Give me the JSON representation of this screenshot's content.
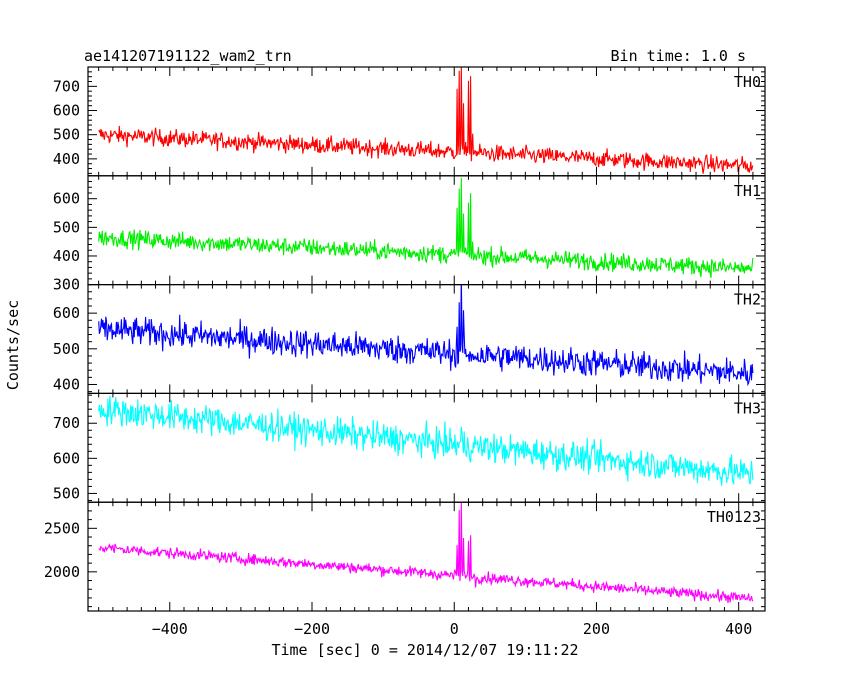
{
  "chart_data": {
    "type": "line",
    "title": "ae141207191122_wam2_trn",
    "subtitle": "Bin time: 1.0 s",
    "xlabel": "Time [sec] 0 = 2014/12/07 19:11:22",
    "ylabel": "Counts/sec",
    "xlim": [
      -515,
      437
    ],
    "x_ticks": [
      -400,
      -200,
      0,
      200,
      400
    ],
    "x_tick_labels": [
      "−400",
      "−200",
      "0",
      "200",
      "400"
    ],
    "x_start": -500,
    "x_end": 420,
    "burst_time": 5,
    "panels": [
      {
        "name": "TH0",
        "color": "#ff0000",
        "ylim": [
          330,
          780
        ],
        "y_ticks": [
          400,
          500,
          600,
          700
        ],
        "y_tick_labels": [
          "400",
          "500",
          "600",
          "700"
        ],
        "baseline_start": 500,
        "baseline_end": 370,
        "noise": 25,
        "burst_peaks": [
          [
            -1,
            690
          ],
          [
            2,
            760
          ],
          [
            5,
            790
          ],
          [
            8,
            640
          ],
          [
            11,
            470
          ],
          [
            15,
            700
          ],
          [
            18,
            720
          ],
          [
            21,
            500
          ],
          [
            25,
            440
          ]
        ]
      },
      {
        "name": "TH1",
        "color": "#00ee00",
        "ylim": [
          300,
          680
        ],
        "y_ticks": [
          300,
          400,
          500,
          600
        ],
        "y_tick_labels": [
          "300",
          "400",
          "500",
          "600"
        ],
        "baseline_start": 465,
        "baseline_end": 355,
        "noise": 22,
        "burst_peaks": [
          [
            -1,
            560
          ],
          [
            2,
            660
          ],
          [
            5,
            680
          ],
          [
            8,
            560
          ],
          [
            11,
            430
          ],
          [
            15,
            580
          ],
          [
            18,
            610
          ],
          [
            21,
            440
          ],
          [
            25,
            400
          ]
        ]
      },
      {
        "name": "TH2",
        "color": "#0000ff",
        "ylim": [
          375,
          680
        ],
        "y_ticks": [
          400,
          500,
          600
        ],
        "y_tick_labels": [
          "400",
          "500",
          "600"
        ],
        "baseline_start": 555,
        "baseline_end": 430,
        "noise": 28,
        "burst_peaks": [
          [
            -1,
            560
          ],
          [
            2,
            640
          ],
          [
            5,
            690
          ],
          [
            8,
            600
          ],
          [
            11,
            490
          ],
          [
            15,
            470
          ]
        ]
      },
      {
        "name": "TH3",
        "color": "#00ffff",
        "ylim": [
          475,
          785
        ],
        "y_ticks": [
          500,
          600,
          700
        ],
        "y_tick_labels": [
          "500",
          "600",
          "700"
        ],
        "baseline_start": 740,
        "baseline_end": 555,
        "noise": 30,
        "burst_peaks": [
          [
            2,
            640
          ],
          [
            5,
            690
          ],
          [
            8,
            620
          ]
        ]
      },
      {
        "name": "TH0123",
        "color": "#ff00ff",
        "ylim": [
          1550,
          2800
        ],
        "y_ticks": [
          2000,
          2500
        ],
        "y_tick_labels": [
          "2000",
          "2500"
        ],
        "baseline_start": 2280,
        "baseline_end": 1690,
        "noise": 45,
        "burst_peaks": [
          [
            -1,
            2300
          ],
          [
            2,
            2700
          ],
          [
            5,
            2800
          ],
          [
            8,
            2400
          ],
          [
            11,
            1950
          ],
          [
            15,
            2350
          ],
          [
            18,
            2400
          ],
          [
            21,
            1950
          ],
          [
            25,
            1850
          ]
        ]
      }
    ]
  }
}
